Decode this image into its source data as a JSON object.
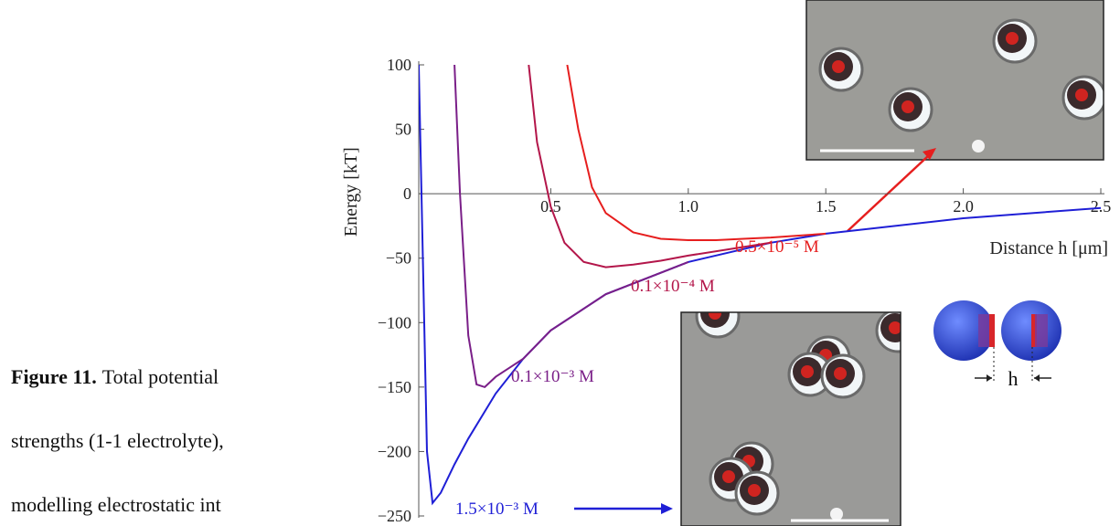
{
  "caption": {
    "label": "Figure 11.",
    "lines": [
      "Total potential",
      "strengths (1-1 electrolyte),",
      "modelling electrostatic int"
    ]
  },
  "chart_data": {
    "type": "line",
    "xlabel": "Distance h [μm]",
    "ylabel": "Energy [kT]",
    "xlim": [
      0,
      2.5
    ],
    "ylim": [
      -250,
      100
    ],
    "xticks": [
      0.5,
      {
        "value": 1.0,
        "label": "1.0"
      },
      1.5,
      {
        "value": 2.0,
        "label": "2.0"
      },
      2.5
    ],
    "yticks": [
      100,
      50,
      0,
      {
        "value": -50,
        "label": "−50"
      },
      {
        "value": -100,
        "label": "−100"
      },
      {
        "value": -150,
        "label": "−150"
      },
      {
        "value": -200,
        "label": "−200"
      },
      {
        "value": -250,
        "label": "−250"
      }
    ],
    "series": [
      {
        "name": "1.5×10⁻³ M",
        "color": "#1f1fd6",
        "x": [
          0.02,
          0.03,
          0.05,
          0.07,
          0.1,
          0.15,
          0.2,
          0.3,
          0.4,
          0.5,
          0.7,
          1.0,
          1.3,
          1.5,
          2.0,
          2.5
        ],
        "values": [
          100,
          0,
          -200,
          -240,
          -232,
          -210,
          -190,
          -155,
          -128,
          -106,
          -78,
          -53,
          -38,
          -31,
          -19,
          -11
        ]
      },
      {
        "name": "0.1×10⁻³ M",
        "color": "#7a1f88",
        "x": [
          0.15,
          0.17,
          0.2,
          0.23,
          0.26,
          0.3,
          0.35,
          0.4,
          0.5,
          0.7,
          1.0
        ],
        "values": [
          100,
          0,
          -110,
          -148,
          -150,
          -142,
          -135,
          -128,
          -106,
          -78,
          -53
        ]
      },
      {
        "name": "0.1×10⁻⁴ M",
        "color": "#b3164a",
        "x": [
          0.42,
          0.45,
          0.5,
          0.55,
          0.62,
          0.7,
          0.8,
          0.9,
          1.0,
          1.3
        ],
        "values": [
          100,
          40,
          -10,
          -38,
          -53,
          -57,
          -55,
          -52,
          -48,
          -38
        ]
      },
      {
        "name": "0.5×10⁻⁵ M",
        "color": "#e61e1e",
        "x": [
          0.56,
          0.6,
          0.65,
          0.7,
          0.8,
          0.9,
          1.0,
          1.1,
          1.2,
          1.3,
          1.5
        ],
        "values": [
          100,
          50,
          5,
          -15,
          -30,
          -35,
          -36,
          -36,
          -35,
          -34,
          -31
        ]
      }
    ]
  },
  "inset_diagram_label": "h"
}
